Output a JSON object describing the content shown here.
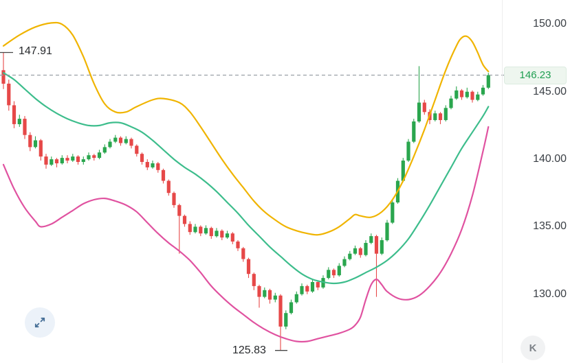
{
  "chart_data": {
    "type": "candlestick",
    "title": "",
    "xlabel": "",
    "ylabel": "",
    "grid": false,
    "legend": false,
    "ylim": [
      124.9,
      151.8
    ],
    "y_axis": {
      "side": "right",
      "labels": [
        "150.00",
        "145.00",
        "140.00",
        "135.00",
        "130.00"
      ],
      "values": [
        150,
        145,
        140,
        135,
        130
      ]
    },
    "last_price": {
      "value": "146.23",
      "numeric": 146.23
    },
    "high_marker": {
      "label": "147.91",
      "value": 147.91,
      "candle_index": 0
    },
    "low_marker": {
      "label": "125.83",
      "value": 125.83,
      "candle_index": 52
    },
    "colors": {
      "up": "#2aa64e",
      "down": "#e64848",
      "upper_band": "#f0b400",
      "middle_band": "#3dbd8c",
      "lower_band": "#e052a0",
      "dashed": "#9aa0a6",
      "marker": "#444444"
    },
    "candles": [
      [
        146.6,
        147.91,
        145.2,
        145.6
      ],
      [
        145.6,
        145.9,
        143.6,
        144.0
      ],
      [
        144.0,
        144.3,
        142.3,
        142.6
      ],
      [
        142.6,
        143.3,
        142.4,
        143.0
      ],
      [
        143.0,
        143.2,
        141.5,
        141.8
      ],
      [
        141.8,
        142.0,
        140.6,
        140.9
      ],
      [
        140.9,
        141.7,
        140.8,
        141.4
      ],
      [
        141.4,
        141.5,
        139.9,
        140.2
      ],
      [
        140.2,
        140.4,
        139.3,
        139.6
      ],
      [
        139.6,
        140.2,
        139.5,
        140.0
      ],
      [
        140.0,
        140.1,
        139.4,
        139.7
      ],
      [
        139.7,
        140.3,
        139.6,
        140.1
      ],
      [
        140.1,
        140.3,
        139.7,
        139.9
      ],
      [
        139.9,
        140.4,
        139.8,
        140.2
      ],
      [
        140.2,
        140.3,
        139.6,
        139.8
      ],
      [
        139.8,
        140.2,
        139.6,
        140.0
      ],
      [
        140.0,
        140.5,
        139.9,
        140.3
      ],
      [
        140.3,
        140.4,
        139.9,
        140.1
      ],
      [
        140.1,
        140.7,
        140.0,
        140.5
      ],
      [
        140.5,
        141.1,
        140.4,
        140.9
      ],
      [
        140.9,
        141.5,
        140.8,
        141.3
      ],
      [
        141.3,
        141.8,
        141.2,
        141.6
      ],
      [
        141.6,
        141.7,
        141.0,
        141.2
      ],
      [
        141.2,
        141.7,
        141.1,
        141.5
      ],
      [
        141.5,
        141.6,
        140.8,
        141.0
      ],
      [
        141.0,
        141.1,
        140.2,
        140.4
      ],
      [
        140.4,
        140.5,
        139.6,
        139.8
      ],
      [
        139.8,
        140.0,
        139.2,
        139.4
      ],
      [
        139.4,
        139.9,
        139.3,
        139.7
      ],
      [
        139.7,
        139.8,
        139.0,
        139.2
      ],
      [
        139.2,
        139.3,
        138.2,
        138.4
      ],
      [
        138.4,
        138.5,
        137.3,
        137.5
      ],
      [
        137.5,
        137.6,
        136.4,
        136.6
      ],
      [
        136.6,
        136.7,
        133.0,
        135.8
      ],
      [
        135.8,
        135.9,
        135.0,
        135.2
      ],
      [
        135.2,
        135.4,
        134.4,
        134.6
      ],
      [
        134.6,
        135.2,
        134.5,
        135.0
      ],
      [
        135.0,
        135.1,
        134.3,
        134.5
      ],
      [
        134.5,
        135.1,
        134.4,
        134.9
      ],
      [
        134.9,
        135.0,
        134.1,
        134.3
      ],
      [
        134.3,
        134.9,
        134.2,
        134.7
      ],
      [
        134.7,
        134.8,
        134.0,
        134.2
      ],
      [
        134.2,
        134.7,
        134.1,
        134.5
      ],
      [
        134.5,
        134.6,
        133.7,
        133.9
      ],
      [
        133.9,
        134.0,
        133.2,
        133.4
      ],
      [
        133.4,
        133.5,
        132.4,
        132.6
      ],
      [
        132.6,
        132.7,
        131.2,
        131.5
      ],
      [
        131.5,
        131.6,
        130.3,
        130.6
      ],
      [
        130.6,
        130.7,
        129.0,
        129.8
      ],
      [
        129.8,
        130.5,
        129.7,
        130.3
      ],
      [
        130.3,
        130.4,
        129.3,
        129.6
      ],
      [
        129.6,
        130.1,
        129.4,
        129.9
      ],
      [
        129.9,
        130.0,
        125.83,
        127.6
      ],
      [
        127.6,
        128.8,
        127.4,
        128.6
      ],
      [
        128.6,
        129.6,
        128.5,
        129.4
      ],
      [
        129.4,
        130.2,
        129.3,
        130.0
      ],
      [
        130.0,
        130.8,
        129.9,
        130.6
      ],
      [
        130.6,
        130.7,
        130.0,
        130.2
      ],
      [
        130.2,
        131.1,
        130.1,
        130.9
      ],
      [
        130.9,
        131.0,
        130.3,
        130.5
      ],
      [
        130.5,
        131.4,
        130.4,
        131.2
      ],
      [
        131.2,
        132.0,
        131.1,
        131.8
      ],
      [
        131.8,
        131.9,
        131.2,
        131.4
      ],
      [
        131.4,
        132.3,
        131.3,
        132.1
      ],
      [
        132.1,
        132.8,
        132.0,
        132.6
      ],
      [
        132.6,
        133.2,
        132.5,
        133.0
      ],
      [
        133.0,
        133.6,
        132.9,
        133.4
      ],
      [
        133.4,
        133.5,
        132.7,
        132.9
      ],
      [
        132.9,
        134.0,
        132.8,
        133.8
      ],
      [
        133.8,
        134.5,
        133.7,
        134.3
      ],
      [
        134.3,
        134.4,
        129.8,
        133.0
      ],
      [
        133.0,
        134.2,
        132.9,
        134.0
      ],
      [
        134.0,
        135.5,
        133.9,
        135.3
      ],
      [
        135.3,
        137.0,
        135.2,
        136.8
      ],
      [
        136.8,
        138.6,
        136.7,
        138.4
      ],
      [
        138.4,
        140.1,
        138.3,
        139.9
      ],
      [
        139.9,
        141.5,
        139.8,
        141.3
      ],
      [
        141.3,
        143.0,
        141.2,
        142.8
      ],
      [
        142.8,
        146.9,
        142.7,
        144.2
      ],
      [
        144.2,
        144.4,
        143.3,
        143.5
      ],
      [
        143.5,
        143.7,
        142.6,
        142.9
      ],
      [
        142.9,
        143.6,
        142.8,
        143.4
      ],
      [
        143.4,
        143.5,
        142.6,
        142.9
      ],
      [
        142.9,
        144.0,
        142.8,
        143.8
      ],
      [
        143.8,
        144.7,
        143.7,
        144.5
      ],
      [
        144.5,
        145.4,
        144.4,
        145.1
      ],
      [
        145.1,
        145.2,
        144.4,
        144.6
      ],
      [
        144.6,
        145.3,
        144.5,
        145.0
      ],
      [
        145.0,
        145.1,
        144.2,
        144.4
      ],
      [
        144.4,
        145.0,
        144.3,
        144.8
      ],
      [
        144.8,
        145.5,
        144.7,
        145.3
      ],
      [
        145.3,
        146.4,
        145.2,
        146.23
      ]
    ],
    "series": [
      {
        "name": "upper-band",
        "color_key": "upper_band",
        "points": [
          [
            0,
            148.4
          ],
          [
            3,
            149.2
          ],
          [
            6,
            149.8
          ],
          [
            9,
            150.1
          ],
          [
            11,
            150.0
          ],
          [
            13,
            149.2
          ],
          [
            15,
            147.6
          ],
          [
            17,
            145.6
          ],
          [
            19,
            144.1
          ],
          [
            21,
            143.5
          ],
          [
            23,
            143.5
          ],
          [
            25,
            143.9
          ],
          [
            28,
            144.4
          ],
          [
            30,
            144.5
          ],
          [
            33,
            144.2
          ],
          [
            35,
            143.5
          ],
          [
            37,
            142.4
          ],
          [
            39,
            141.2
          ],
          [
            41,
            140.0
          ],
          [
            43,
            138.9
          ],
          [
            45,
            137.9
          ],
          [
            47,
            136.9
          ],
          [
            49,
            136.1
          ],
          [
            51,
            135.5
          ],
          [
            53,
            135.0
          ],
          [
            55,
            134.7
          ],
          [
            57,
            134.5
          ],
          [
            59,
            134.4
          ],
          [
            61,
            134.6
          ],
          [
            63,
            135.0
          ],
          [
            65,
            135.6
          ],
          [
            66,
            135.9
          ],
          [
            67,
            135.8
          ],
          [
            69,
            135.7
          ],
          [
            71,
            136.1
          ],
          [
            73,
            137.0
          ],
          [
            75,
            138.4
          ],
          [
            77,
            140.2
          ],
          [
            79,
            142.2
          ],
          [
            81,
            144.4
          ],
          [
            83,
            146.6
          ],
          [
            85,
            148.4
          ],
          [
            86,
            149.0
          ],
          [
            87,
            149.1
          ],
          [
            88,
            148.7
          ],
          [
            89,
            147.9
          ],
          [
            90,
            147.0
          ],
          [
            91,
            146.5
          ]
        ]
      },
      {
        "name": "middle-band",
        "color_key": "middle_band",
        "points": [
          [
            0,
            146.4
          ],
          [
            2,
            145.9
          ],
          [
            4,
            145.2
          ],
          [
            6,
            144.5
          ],
          [
            8,
            143.9
          ],
          [
            10,
            143.4
          ],
          [
            12,
            143.0
          ],
          [
            14,
            142.7
          ],
          [
            16,
            142.5
          ],
          [
            18,
            142.5
          ],
          [
            20,
            142.7
          ],
          [
            22,
            142.7
          ],
          [
            24,
            142.4
          ],
          [
            26,
            142.0
          ],
          [
            28,
            141.4
          ],
          [
            30,
            140.7
          ],
          [
            32,
            140.0
          ],
          [
            34,
            139.4
          ],
          [
            36,
            138.9
          ],
          [
            38,
            138.3
          ],
          [
            40,
            137.6
          ],
          [
            42,
            136.8
          ],
          [
            44,
            136.0
          ],
          [
            46,
            135.1
          ],
          [
            48,
            134.3
          ],
          [
            50,
            133.5
          ],
          [
            52,
            132.8
          ],
          [
            54,
            132.1
          ],
          [
            56,
            131.5
          ],
          [
            58,
            131.1
          ],
          [
            60,
            130.9
          ],
          [
            62,
            130.8
          ],
          [
            64,
            130.9
          ],
          [
            66,
            131.2
          ],
          [
            68,
            131.6
          ],
          [
            70,
            132.0
          ],
          [
            72,
            132.5
          ],
          [
            74,
            133.2
          ],
          [
            76,
            134.1
          ],
          [
            78,
            135.3
          ],
          [
            80,
            136.6
          ],
          [
            82,
            138.0
          ],
          [
            84,
            139.4
          ],
          [
            86,
            140.8
          ],
          [
            88,
            142.0
          ],
          [
            90,
            143.2
          ],
          [
            91,
            143.9
          ]
        ]
      },
      {
        "name": "lower-band",
        "color_key": "lower_band",
        "points": [
          [
            0,
            139.6
          ],
          [
            2,
            137.8
          ],
          [
            4,
            136.4
          ],
          [
            6,
            135.4
          ],
          [
            7,
            135.0
          ],
          [
            9,
            135.2
          ],
          [
            11,
            135.7
          ],
          [
            13,
            136.2
          ],
          [
            15,
            136.7
          ],
          [
            17,
            137.0
          ],
          [
            19,
            137.1
          ],
          [
            21,
            136.9
          ],
          [
            23,
            136.6
          ],
          [
            25,
            136.1
          ],
          [
            27,
            135.3
          ],
          [
            29,
            134.5
          ],
          [
            31,
            133.8
          ],
          [
            33,
            133.2
          ],
          [
            35,
            132.5
          ],
          [
            37,
            131.6
          ],
          [
            39,
            130.6
          ],
          [
            41,
            129.8
          ],
          [
            43,
            129.1
          ],
          [
            45,
            128.5
          ],
          [
            47,
            127.9
          ],
          [
            49,
            127.4
          ],
          [
            51,
            127.0
          ],
          [
            53,
            126.7
          ],
          [
            55,
            126.5
          ],
          [
            57,
            126.5
          ],
          [
            59,
            126.7
          ],
          [
            61,
            126.9
          ],
          [
            63,
            127.1
          ],
          [
            65,
            127.4
          ],
          [
            66,
            127.7
          ],
          [
            67,
            128.3
          ],
          [
            68,
            129.6
          ],
          [
            69,
            130.7
          ],
          [
            70,
            131.1
          ],
          [
            71,
            130.7
          ],
          [
            72,
            130.2
          ],
          [
            74,
            129.7
          ],
          [
            76,
            129.6
          ],
          [
            78,
            129.9
          ],
          [
            80,
            130.6
          ],
          [
            82,
            131.6
          ],
          [
            84,
            133.0
          ],
          [
            86,
            134.8
          ],
          [
            88,
            137.3
          ],
          [
            90,
            140.6
          ],
          [
            91,
            142.4
          ]
        ]
      }
    ]
  },
  "controls": {
    "expand_icon": "expand-arrows-icon",
    "logo_text": "K"
  }
}
